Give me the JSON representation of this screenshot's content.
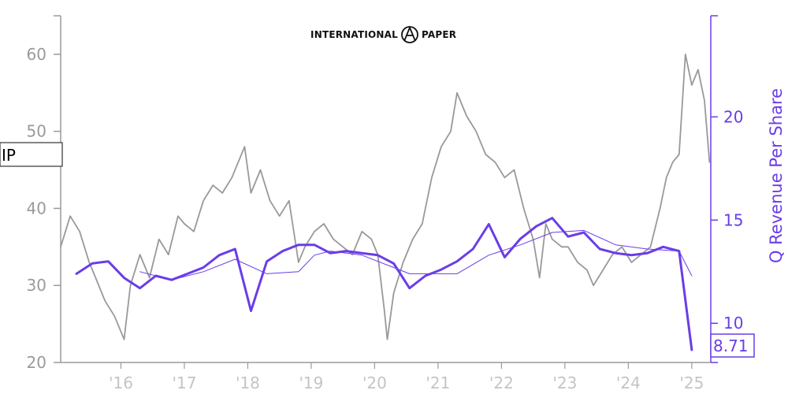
{
  "logo": {
    "left_text": "INTERNATIONAL",
    "right_text": "PAPER"
  },
  "ticker": "IP",
  "last_value_label": "8.71",
  "colors": {
    "price": "#999999",
    "revenue": "#6a3de8",
    "axis_left": "#9a9a9a",
    "axis_x": "#c4c4c4"
  },
  "chart_data": {
    "type": "line",
    "xlabel": "",
    "ylabel_left": "",
    "ylabel_right": "Q Revenue Per Share",
    "x_ticks": [
      "'16",
      "'17",
      "'18",
      "'19",
      "'20",
      "'21",
      "'22",
      "'23",
      "'24",
      "'25"
    ],
    "x_tick_values": [
      2016,
      2017,
      2018,
      2019,
      2020,
      2021,
      2022,
      2023,
      2024,
      2025
    ],
    "xlim": [
      2015.05,
      2025.3
    ],
    "ylim_left": [
      20,
      65
    ],
    "y_ticks_left": [
      20,
      30,
      40,
      50,
      60
    ],
    "ylim_right": [
      8.1,
      24.9
    ],
    "y_ticks_right": [
      10,
      15,
      20
    ],
    "series": [
      {
        "name": "IP",
        "axis": "left",
        "x": [
          2015.05,
          2015.2,
          2015.35,
          2015.5,
          2015.6,
          2015.75,
          2015.9,
          2016.05,
          2016.15,
          2016.3,
          2016.45,
          2016.6,
          2016.75,
          2016.9,
          2017.0,
          2017.15,
          2017.3,
          2017.45,
          2017.6,
          2017.75,
          2017.95,
          2018.05,
          2018.2,
          2018.35,
          2018.5,
          2018.65,
          2018.8,
          2018.9,
          2019.05,
          2019.2,
          2019.35,
          2019.5,
          2019.65,
          2019.8,
          2019.95,
          2020.05,
          2020.15,
          2020.2,
          2020.3,
          2020.45,
          2020.6,
          2020.75,
          2020.9,
          2021.05,
          2021.2,
          2021.3,
          2021.45,
          2021.6,
          2021.75,
          2021.9,
          2022.05,
          2022.2,
          2022.35,
          2022.5,
          2022.6,
          2022.7,
          2022.8,
          2022.95,
          2023.05,
          2023.2,
          2023.35,
          2023.45,
          2023.6,
          2023.75,
          2023.9,
          2024.05,
          2024.2,
          2024.35,
          2024.5,
          2024.6,
          2024.7,
          2024.8,
          2024.9,
          2025.0,
          2025.1,
          2025.2,
          2025.28
        ],
        "values": [
          35,
          39,
          37,
          33,
          31,
          28,
          26,
          23,
          30,
          34,
          31,
          36,
          34,
          39,
          38,
          37,
          41,
          43,
          42,
          44,
          48,
          42,
          45,
          41,
          39,
          41,
          33,
          35,
          37,
          38,
          36,
          35,
          34,
          37,
          36,
          34,
          27,
          23,
          29,
          33,
          36,
          38,
          44,
          48,
          50,
          55,
          52,
          50,
          47,
          46,
          44,
          45,
          40,
          36,
          31,
          38,
          36,
          35,
          35,
          33,
          32,
          30,
          32,
          34,
          35,
          33,
          34,
          35,
          40,
          44,
          46,
          47,
          60,
          56,
          58,
          54,
          46
        ]
      },
      {
        "name": "Q Revenue Per Share",
        "axis": "right",
        "x": [
          2015.3,
          2015.55,
          2015.8,
          2016.05,
          2016.3,
          2016.55,
          2016.8,
          2017.05,
          2017.3,
          2017.55,
          2017.8,
          2018.05,
          2018.3,
          2018.55,
          2018.8,
          2019.05,
          2019.3,
          2019.55,
          2019.8,
          2020.05,
          2020.3,
          2020.55,
          2020.8,
          2021.05,
          2021.3,
          2021.55,
          2021.8,
          2022.05,
          2022.3,
          2022.55,
          2022.8,
          2023.05,
          2023.3,
          2023.55,
          2023.8,
          2024.05,
          2024.3,
          2024.55,
          2024.8,
          2025.0
        ],
        "values": [
          12.4,
          12.9,
          13.0,
          12.2,
          11.7,
          12.3,
          12.1,
          12.4,
          12.7,
          13.3,
          13.6,
          10.6,
          13.0,
          13.5,
          13.8,
          13.8,
          13.4,
          13.5,
          13.4,
          13.3,
          12.9,
          11.7,
          12.3,
          12.6,
          13.0,
          13.6,
          14.8,
          13.2,
          14.1,
          14.7,
          15.1,
          14.2,
          14.4,
          13.6,
          13.4,
          13.3,
          13.4,
          13.7,
          13.5,
          8.71
        ]
      },
      {
        "name": "",
        "axis": "right",
        "x": [
          2016.3,
          2016.8,
          2017.3,
          2017.8,
          2018.3,
          2018.8,
          2019.05,
          2019.3,
          2019.8,
          2020.3,
          2020.55,
          2020.8,
          2021.3,
          2021.8,
          2022.3,
          2022.8,
          2023.3,
          2023.8,
          2024.3,
          2024.8,
          2025.0
        ],
        "values": [
          12.5,
          12.1,
          12.5,
          13.1,
          12.4,
          12.5,
          13.3,
          13.5,
          13.3,
          12.7,
          12.4,
          12.4,
          12.4,
          13.3,
          13.8,
          14.4,
          14.5,
          13.8,
          13.6,
          13.5,
          12.3
        ]
      }
    ]
  }
}
